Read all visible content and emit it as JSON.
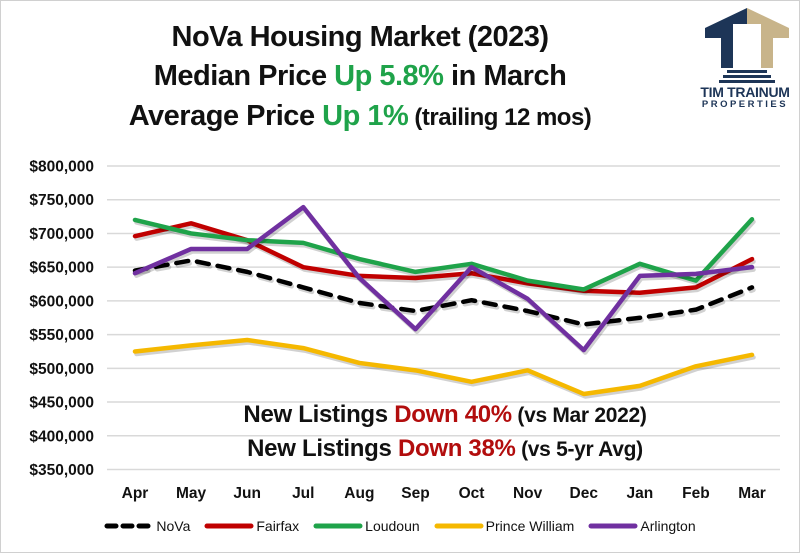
{
  "header": {
    "title_line1": "NoVa Housing Market (2023)",
    "title_line2_prefix": "Median Price ",
    "title_line2_highlight": "Up 5.8%",
    "title_line2_suffix": " in March",
    "title_line3_prefix": "Average Price ",
    "title_line3_highlight": "Up 1%",
    "title_line3_suffix": " (trailing 12 mos)"
  },
  "logo": {
    "icon": "building-columns-logo-icon",
    "name_line1": "TIM TRAINUM",
    "name_line2": "PROPERTIES",
    "colors": {
      "navy": "#1d3557",
      "tan": "#c8b48a"
    }
  },
  "annotations": {
    "line1_prefix": "New Listings ",
    "line1_highlight": "Down 40%",
    "line1_suffix": " (vs Mar 2022)",
    "line2_prefix": "New Listings ",
    "line2_highlight": "Down 38%",
    "line2_suffix": " (vs 5-yr Avg)",
    "highlight_color": "#b20d0d"
  },
  "chart_data": {
    "type": "line",
    "title": "NoVa Housing Market (2023)",
    "xlabel": "",
    "ylabel": "",
    "categories": [
      "Apr",
      "May",
      "Jun",
      "Jul",
      "Aug",
      "Sep",
      "Oct",
      "Nov",
      "Dec",
      "Jan",
      "Feb",
      "Mar"
    ],
    "ylim": [
      350000,
      800000
    ],
    "yticks": [
      800000,
      750000,
      700000,
      650000,
      600000,
      550000,
      500000,
      450000,
      400000,
      350000
    ],
    "ytick_labels": [
      "$800,000",
      "$750,000",
      "$700,000",
      "$650,000",
      "$600,000",
      "$550,000",
      "$500,000",
      "$450,000",
      "$400,000",
      "$350,000"
    ],
    "grid": true,
    "legend_position": "bottom",
    "series": [
      {
        "name": "NoVa",
        "color": "#000000",
        "dashed": true,
        "values": [
          645000,
          660000,
          643000,
          620000,
          597000,
          585000,
          601000,
          585000,
          565000,
          575000,
          587000,
          620000
        ]
      },
      {
        "name": "Fairfax",
        "color": "#c00000",
        "dashed": false,
        "values": [
          696000,
          715000,
          690000,
          650000,
          637000,
          634000,
          641000,
          626000,
          615000,
          612000,
          620000,
          662000
        ]
      },
      {
        "name": "Loudoun",
        "color": "#1fa34a",
        "dashed": false,
        "values": [
          720000,
          700000,
          690000,
          686000,
          662000,
          643000,
          655000,
          630000,
          617000,
          655000,
          630000,
          721000
        ]
      },
      {
        "name": "Prince William",
        "color": "#f5b800",
        "dashed": false,
        "values": [
          525000,
          534000,
          542000,
          530000,
          508000,
          497000,
          480000,
          497000,
          462000,
          474000,
          503000,
          520000
        ]
      },
      {
        "name": "Arlington",
        "color": "#7030a0",
        "dashed": false,
        "values": [
          641000,
          677000,
          677000,
          739000,
          634000,
          558000,
          650000,
          603000,
          527000,
          637000,
          640000,
          650000
        ]
      }
    ]
  }
}
